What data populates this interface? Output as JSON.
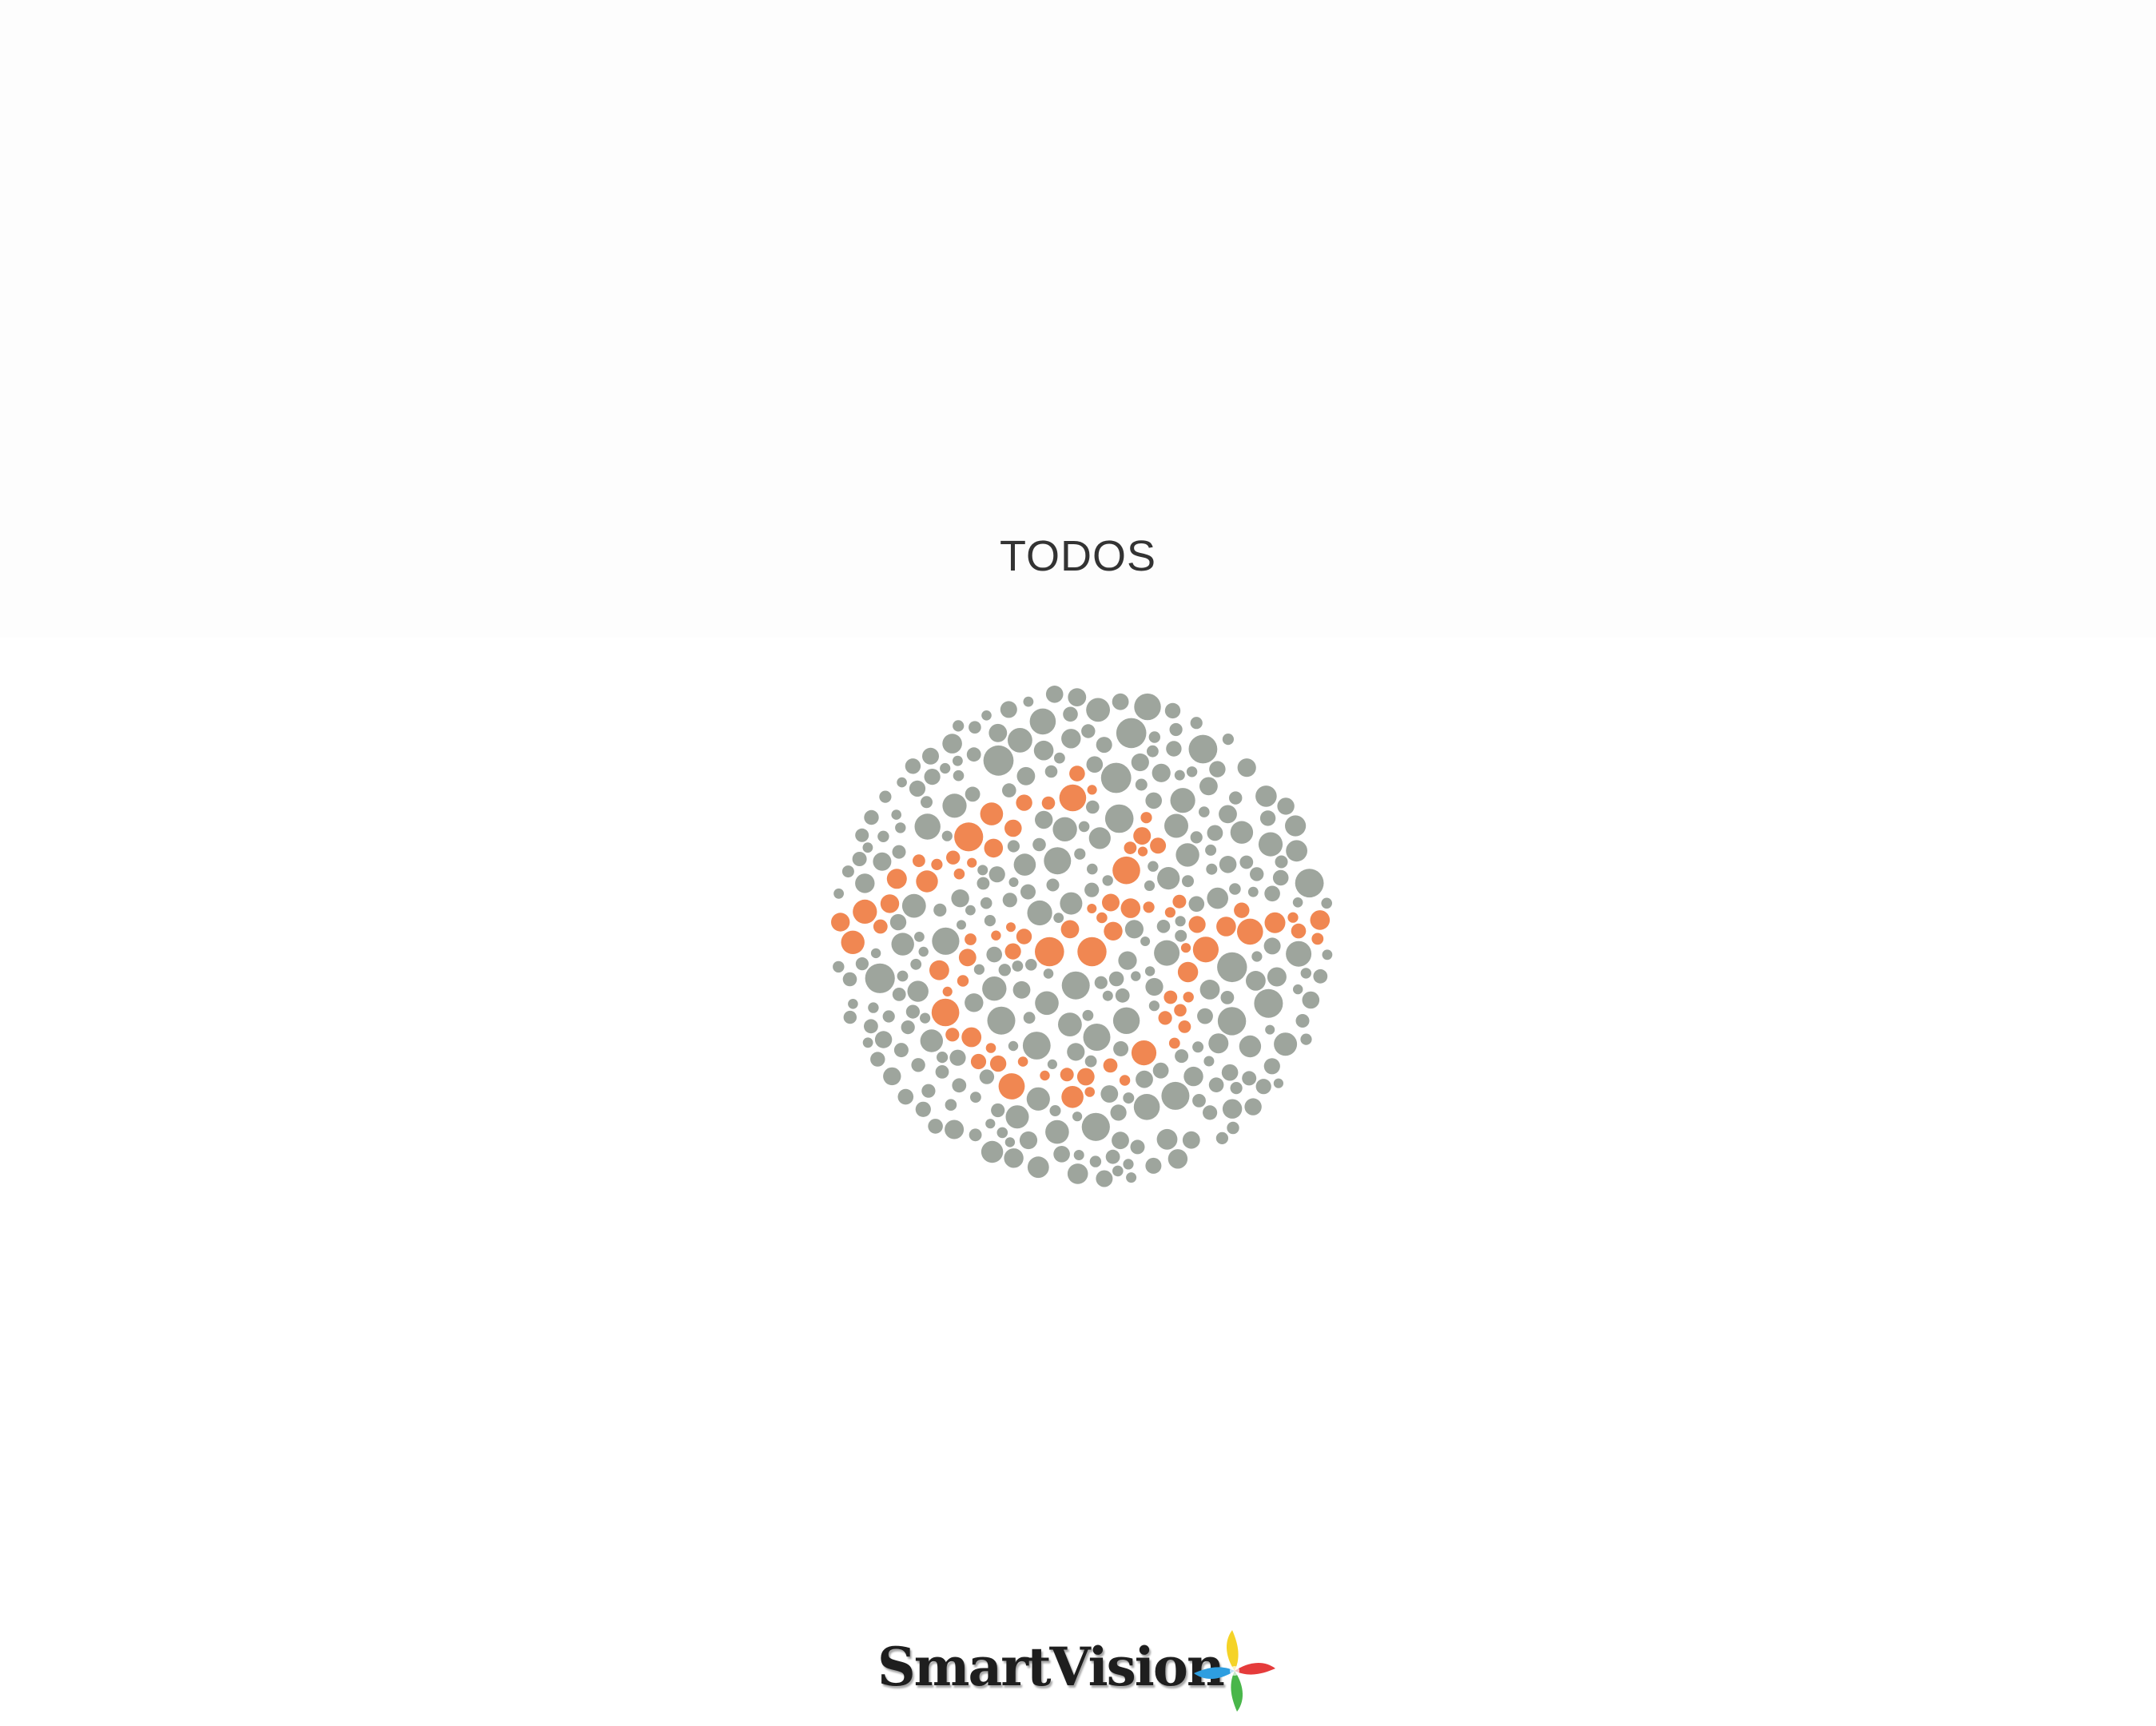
{
  "screen": {
    "title": "TODOS"
  },
  "plate": {
    "description_icon": "ishihara-plate-icon",
    "colors": {
      "background_dot": "#9ea59d",
      "figure_dot": "#f08752"
    }
  },
  "logo": {
    "text": "SmartVision",
    "icon": "pinwheel-logo-icon",
    "colors": {
      "text": "#1e1e1e",
      "yellow": "#f5d327",
      "green": "#49b64a",
      "blue": "#2e9ee0",
      "red": "#e53b3b"
    }
  }
}
